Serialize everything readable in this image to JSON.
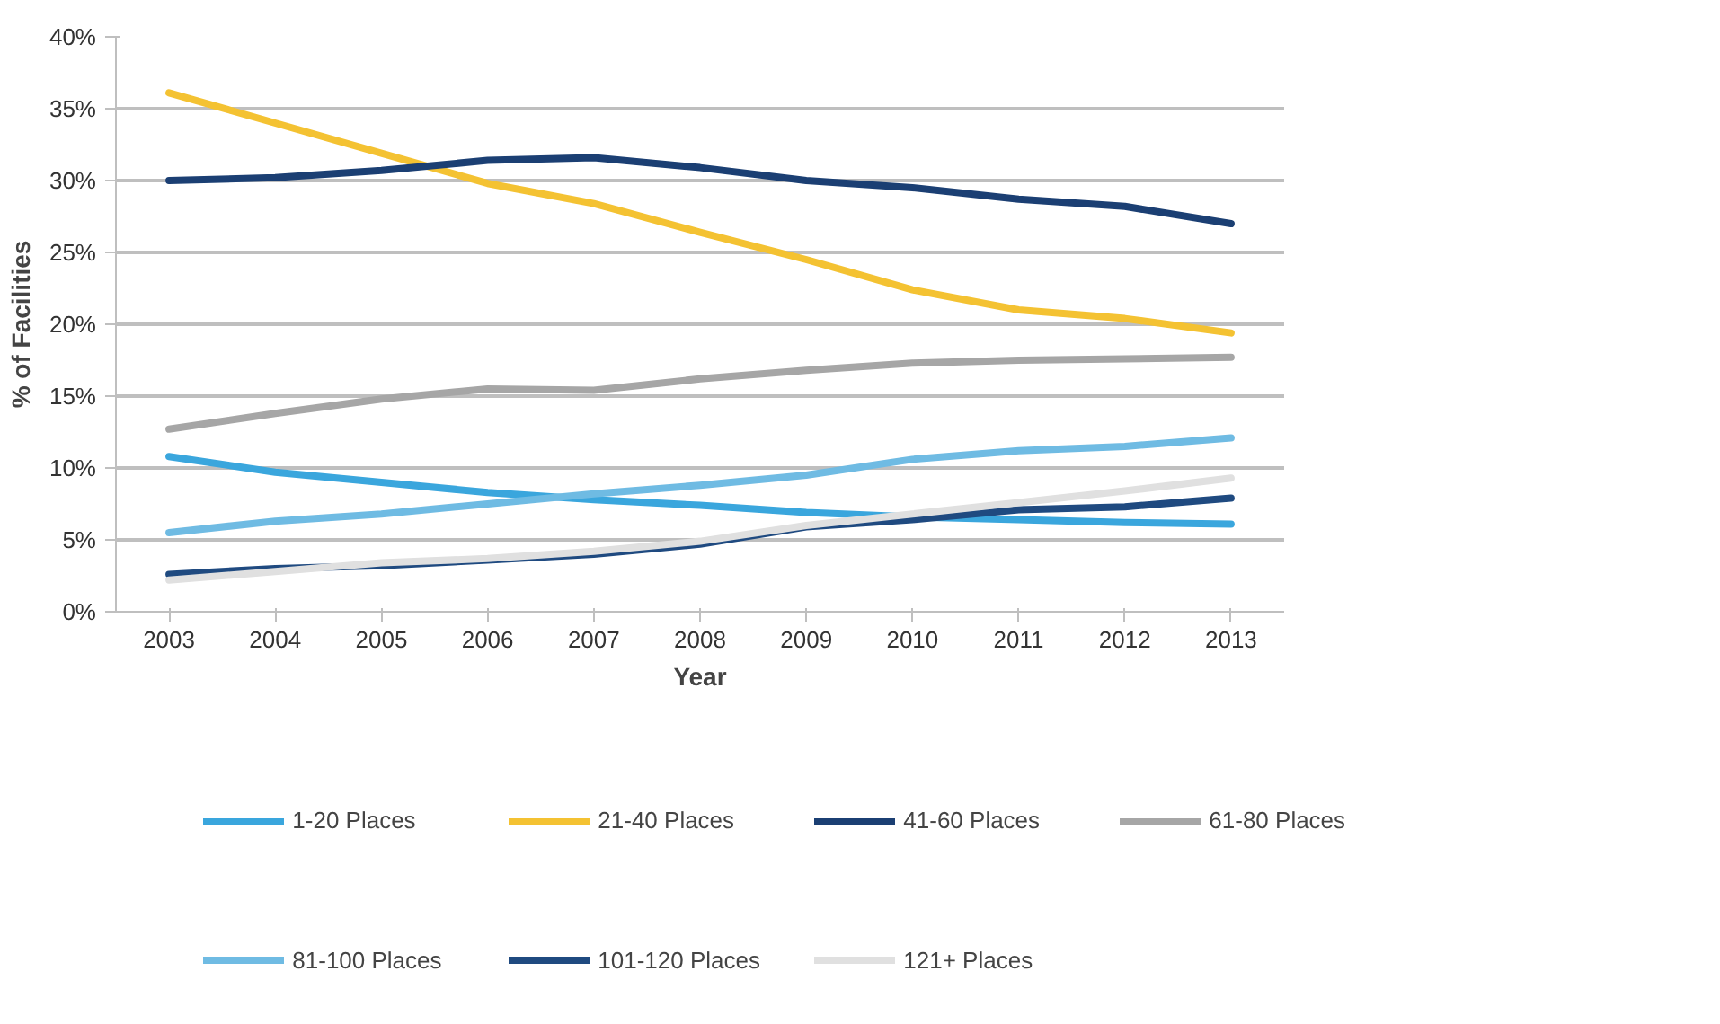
{
  "chart_data": {
    "type": "line",
    "xlabel": "Year",
    "ylabel": "% of Facilities",
    "categories": [
      "2003",
      "2004",
      "2005",
      "2006",
      "2007",
      "2008",
      "2009",
      "2010",
      "2011",
      "2012",
      "2013"
    ],
    "ylim": [
      0,
      40
    ],
    "yticks": [
      {
        "value": 0,
        "label": "0%"
      },
      {
        "value": 5,
        "label": "5%"
      },
      {
        "value": 10,
        "label": "10%"
      },
      {
        "value": 15,
        "label": "15%"
      },
      {
        "value": 20,
        "label": "20%"
      },
      {
        "value": 25,
        "label": "25%"
      },
      {
        "value": 30,
        "label": "30%"
      },
      {
        "value": 35,
        "label": "35%"
      },
      {
        "value": 40,
        "label": "40%"
      }
    ],
    "grid": "y",
    "legend": "bottom",
    "marker": "none",
    "line_style": "solid",
    "series": [
      {
        "name": "1-20 Places",
        "color": "#3aa6dd",
        "values": [
          10.8,
          9.7,
          9.0,
          8.3,
          7.8,
          7.4,
          6.9,
          6.6,
          6.4,
          6.2,
          6.1
        ]
      },
      {
        "name": "21-40 Places",
        "color": "#f4c232",
        "values": [
          36.1,
          34.0,
          31.9,
          29.8,
          28.4,
          26.4,
          24.5,
          22.4,
          21.0,
          20.4,
          19.4
        ]
      },
      {
        "name": "41-60 Places",
        "color": "#1b3f73",
        "values": [
          30.0,
          30.2,
          30.7,
          31.4,
          31.6,
          30.9,
          30.0,
          29.5,
          28.7,
          28.2,
          27.0
        ]
      },
      {
        "name": "61-80 Places",
        "color": "#a6a6a6",
        "values": [
          12.7,
          13.8,
          14.8,
          15.5,
          15.4,
          16.2,
          16.8,
          17.3,
          17.5,
          17.6,
          17.7
        ]
      },
      {
        "name": "81-100 Places",
        "color": "#6fbbe3",
        "values": [
          5.5,
          6.3,
          6.8,
          7.5,
          8.2,
          8.8,
          9.5,
          10.6,
          11.2,
          11.5,
          12.1
        ]
      },
      {
        "name": "101-120 Places",
        "color": "#1f4a80",
        "values": [
          2.6,
          3.0,
          3.2,
          3.6,
          4.0,
          4.7,
          5.9,
          6.4,
          7.1,
          7.3,
          7.9
        ]
      },
      {
        "name": "121+ Places",
        "color": "#e0e0e0",
        "values": [
          2.2,
          2.8,
          3.4,
          3.7,
          4.2,
          4.9,
          6.0,
          6.8,
          7.6,
          8.4,
          9.3
        ]
      }
    ]
  }
}
